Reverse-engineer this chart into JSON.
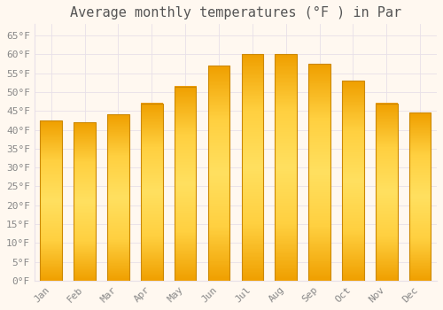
{
  "title": "Average monthly temperatures (°F ) in Par",
  "months": [
    "Jan",
    "Feb",
    "Mar",
    "Apr",
    "May",
    "Jun",
    "Jul",
    "Aug",
    "Sep",
    "Oct",
    "Nov",
    "Dec"
  ],
  "values": [
    42.5,
    42.0,
    44.0,
    47.0,
    51.5,
    57.0,
    60.0,
    60.0,
    57.5,
    53.0,
    47.0,
    44.5
  ],
  "bar_color_center": "#FFD966",
  "bar_color_edge": "#F0A800",
  "background_color": "#FFF8F0",
  "grid_color": "#E8E0E8",
  "ylim": [
    0,
    68
  ],
  "ytick_step": 5,
  "title_fontsize": 11,
  "tick_fontsize": 8,
  "tick_font_color": "#888888",
  "font_family": "monospace",
  "bar_width": 0.65
}
